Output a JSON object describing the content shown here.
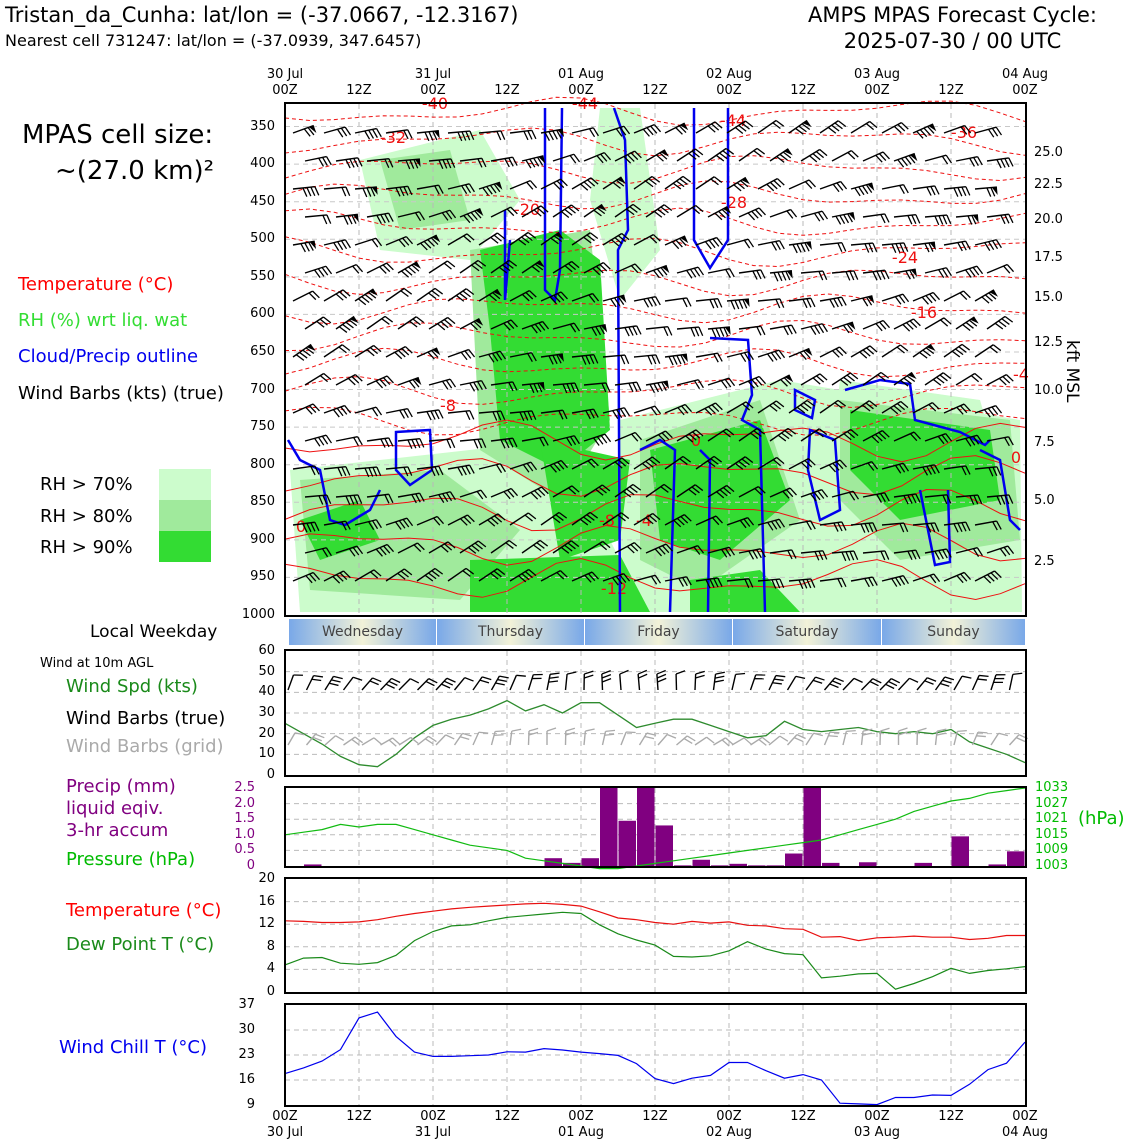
{
  "header": {
    "station_line": "Tristan_da_Cunha: lat/lon = (-37.0667, -12.3167)",
    "cell_line": "Nearest cell 731247: lat/lon = (-37.0939, 347.6457)",
    "title_line1": "AMPS MPAS Forecast Cycle:",
    "title_line2": "2025-07-30 / 00 UTC"
  },
  "cell_size": {
    "label": "MPAS cell size:",
    "value": "~(27.0 km)²"
  },
  "legend": {
    "temperature": "Temperature (°C)",
    "rh": "RH (%) wrt liq. wat",
    "cloud": "Cloud/Precip outline",
    "wind": "Wind Barbs (kts) (true)",
    "rh70": "RH > 70%",
    "rh80": "RH > 80%",
    "rh90": "RH > 90%",
    "rh70_color": "#ccfccc",
    "rh80_color": "#a0ea9c",
    "rh90_color": "#33dc33"
  },
  "time_axis": {
    "top_day_labels": [
      "30 Jul",
      "31 Jul",
      "01 Aug",
      "02 Aug",
      "03 Aug",
      "04 Aug"
    ],
    "top_hour_labels": [
      "00Z",
      "12Z",
      "00Z",
      "12Z",
      "00Z",
      "12Z",
      "00Z",
      "12Z",
      "00Z",
      "12Z",
      "00Z"
    ],
    "bottom_hour_labels": [
      "00Z",
      "12Z",
      "00Z",
      "12Z",
      "00Z",
      "12Z",
      "00Z",
      "12Z",
      "00Z",
      "12Z",
      "00Z"
    ],
    "bottom_day_labels": [
      "30 Jul",
      "31 Jul",
      "01 Aug",
      "02 Aug",
      "03 Aug",
      "04 Aug"
    ]
  },
  "profile": {
    "pressure_ticks": [
      "350",
      "400",
      "450",
      "500",
      "550",
      "600",
      "650",
      "700",
      "750",
      "800",
      "850",
      "900",
      "950",
      "1000"
    ],
    "kft_ticks": [
      "25.0",
      "22.5",
      "20.0",
      "17.5",
      "15.0",
      "12.5",
      "10.0",
      "7.5",
      "5.0",
      "2.5"
    ],
    "kft_label": "kft MSL",
    "temp_contour_labels": [
      "-40",
      "-44",
      "-44",
      "-36",
      "-32",
      "-20",
      "-28",
      "-24",
      "-16",
      "-4",
      "-8",
      "0",
      "0",
      "-8",
      "-4",
      "-12",
      "0"
    ]
  },
  "weekday": {
    "label": "Local Weekday",
    "days": [
      "Wednesday",
      "Thursday",
      "Friday",
      "Saturday",
      "Sunday"
    ]
  },
  "wind_panel": {
    "title": "Wind at 10m AGL",
    "label_speed": "Wind Spd (kts)",
    "label_true": "Wind Barbs (true)",
    "label_grid": "Wind Barbs (grid)",
    "yticks": [
      "60",
      "50",
      "40",
      "30",
      "20",
      "10",
      "0"
    ]
  },
  "precip_panel": {
    "label1": "Precip (mm)",
    "label2": "liquid eqiv.",
    "label3": "3-hr accum",
    "label4": "Pressure (hPa)",
    "left_ticks": [
      "2.5",
      "2.0",
      "1.5",
      "1.0",
      "0.5",
      "0"
    ],
    "right_ticks": [
      "1033",
      "1027",
      "1021",
      "1015",
      "1009",
      "1003"
    ],
    "right_unit": "(hPa)"
  },
  "temp_panel": {
    "label_temp": "Temperature (°C)",
    "label_dew": "Dew Point T (°C)",
    "yticks": [
      "20",
      "16",
      "12",
      "8",
      "4",
      "0"
    ]
  },
  "chill_panel": {
    "label": "Wind Chill T (°C)",
    "yticks": [
      "37",
      "30",
      "23",
      "16",
      "9"
    ]
  },
  "chart_data": [
    {
      "type": "line",
      "title": "Wind at 10m AGL",
      "x_hours": [
        0,
        3,
        6,
        9,
        12,
        15,
        18,
        21,
        24,
        27,
        30,
        33,
        36,
        39,
        42,
        45,
        48,
        51,
        54,
        57,
        60,
        63,
        66,
        69,
        72,
        75,
        78,
        81,
        84,
        87,
        90,
        93,
        96,
        99,
        102,
        105,
        108,
        111,
        114,
        117,
        120
      ],
      "series": [
        {
          "name": "Wind Spd (kts)",
          "color": "#2e8b2e",
          "values": [
            25,
            20,
            15,
            9,
            5,
            4,
            10,
            18,
            24,
            27,
            29,
            32,
            36,
            31,
            34,
            30,
            35,
            35,
            29,
            23,
            25,
            27,
            27,
            24,
            21,
            18,
            19,
            26,
            22,
            21,
            22,
            23,
            21,
            20,
            21,
            20,
            22,
            16,
            13,
            10,
            6
          ]
        }
      ],
      "ylim": [
        0,
        60
      ]
    },
    {
      "type": "bar",
      "title": "Precip (mm)",
      "x_hours": [
        0,
        3,
        6,
        9,
        12,
        15,
        18,
        21,
        24,
        27,
        30,
        33,
        36,
        39,
        42,
        45,
        48,
        51,
        54,
        57,
        60,
        63,
        66,
        69,
        72,
        75,
        78,
        81,
        84,
        87,
        90,
        93,
        96,
        99,
        102,
        105,
        108,
        111,
        114,
        117
      ],
      "values": [
        0,
        0.05,
        0,
        0,
        0,
        0,
        0,
        0,
        0,
        0,
        0,
        0,
        0,
        0,
        0.25,
        0.1,
        0.25,
        2.5,
        1.45,
        2.5,
        1.3,
        0.02,
        0.2,
        0.02,
        0.07,
        0.02,
        0.02,
        0.4,
        2.5,
        0.1,
        0,
        0.12,
        0,
        0,
        0.1,
        0,
        0.95,
        0,
        0.05,
        0.47
      ],
      "ylim": [
        0,
        2.5
      ],
      "pressure_hpa": [
        1015,
        1016,
        1017,
        1019,
        1018,
        1019,
        1019,
        1017,
        1015,
        1013,
        1011,
        1010,
        1009,
        1006,
        1005,
        1004,
        1003,
        1002,
        1002,
        1003,
        1004,
        1005,
        1006,
        1007,
        1008,
        1009,
        1010,
        1011,
        1012,
        1013,
        1015,
        1017,
        1019,
        1021,
        1024,
        1026,
        1028,
        1029,
        1031,
        1032,
        1033
      ],
      "pressure_ylim": [
        1003,
        1033
      ]
    },
    {
      "type": "line",
      "title": "Temperature / Dew Point",
      "x_hours": [
        0,
        3,
        6,
        9,
        12,
        15,
        18,
        21,
        24,
        27,
        30,
        33,
        36,
        39,
        42,
        45,
        48,
        51,
        54,
        57,
        60,
        63,
        66,
        69,
        72,
        75,
        78,
        81,
        84,
        87,
        90,
        93,
        96,
        99,
        102,
        105,
        108,
        111,
        114,
        117,
        120
      ],
      "series": [
        {
          "name": "Temperature (°C)",
          "color": "#e81010",
          "values": [
            12.6,
            12.5,
            12.3,
            12.3,
            12.4,
            12.8,
            13.4,
            13.9,
            14.3,
            14.7,
            15.0,
            15.2,
            15.4,
            15.6,
            15.7,
            15.5,
            15.2,
            14.2,
            13.1,
            12.8,
            12.3,
            12.0,
            12.5,
            12.2,
            12.4,
            11.8,
            11.7,
            11.2,
            11.1,
            9.7,
            9.8,
            9.1,
            9.6,
            9.7,
            9.9,
            9.7,
            9.7,
            9.3,
            9.5,
            10.0,
            10.0
          ]
        },
        {
          "name": "Dew Point T (°C)",
          "color": "#1a8a1a",
          "values": [
            4.8,
            6.0,
            6.1,
            5.1,
            4.9,
            5.2,
            6.5,
            9.1,
            10.7,
            11.7,
            11.9,
            12.6,
            13.2,
            13.5,
            13.8,
            14.1,
            13.9,
            11.9,
            10.3,
            9.2,
            8.3,
            6.3,
            6.2,
            6.4,
            7.3,
            8.9,
            7.6,
            6.8,
            6.6,
            2.5,
            2.8,
            3.2,
            3.3,
            0.5,
            1.5,
            2.7,
            4.2,
            3.3,
            3.8,
            4.1,
            4.5
          ]
        }
      ],
      "ylim": [
        0,
        20
      ]
    },
    {
      "type": "line",
      "title": "Wind Chill T (°C)",
      "x_hours": [
        0,
        3,
        6,
        9,
        12,
        15,
        18,
        21,
        24,
        27,
        30,
        33,
        36,
        39,
        42,
        45,
        48,
        51,
        54,
        57,
        60,
        63,
        66,
        69,
        72,
        75,
        78,
        81,
        84,
        87,
        90,
        93,
        96,
        99,
        102,
        105,
        108,
        111,
        114,
        117,
        120
      ],
      "series": [
        {
          "name": "Wind Chill T (°C)",
          "color": "#0000ee",
          "values": [
            17.8,
            19.4,
            21.3,
            24.5,
            33.4,
            35.0,
            28.2,
            23.8,
            22.6,
            22.6,
            22.8,
            23.0,
            23.9,
            23.8,
            24.8,
            24.4,
            23.8,
            23.4,
            22.9,
            20.6,
            16.4,
            15.0,
            16.5,
            17.3,
            20.9,
            20.9,
            18.6,
            16.5,
            17.5,
            16.0,
            9.5,
            9.3,
            9.1,
            11.1,
            11.1,
            11.8,
            11.7,
            14.8,
            18.9,
            20.7,
            26.6
          ]
        }
      ],
      "ylim": [
        9,
        37
      ]
    }
  ]
}
